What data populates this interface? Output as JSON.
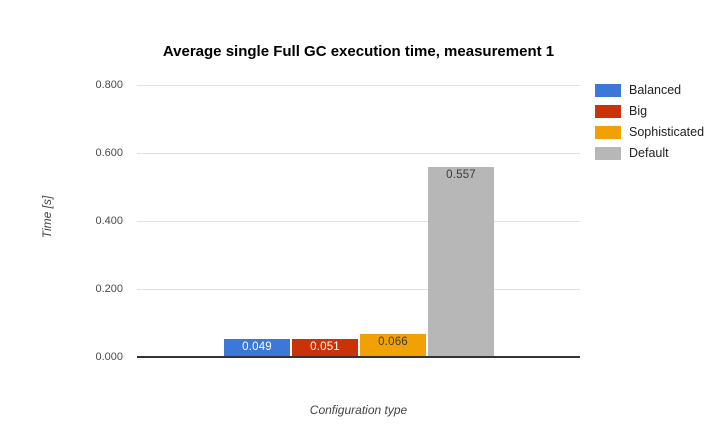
{
  "chart_data": {
    "type": "bar",
    "title": "Average single Full GC execution time, measurement 1",
    "xlabel": "Configuration type",
    "ylabel": "Time [s]",
    "ylim": [
      0,
      0.8
    ],
    "ytick_labels": [
      "0.000",
      "0.200",
      "0.400",
      "0.600",
      "0.800"
    ],
    "ytick_values": [
      0,
      0.2,
      0.4,
      0.6,
      0.8
    ],
    "grid": true,
    "legend_position": "right",
    "categories": [
      "Balanced",
      "Big",
      "Sophisticated",
      "Default"
    ],
    "series": [
      {
        "name": "Balanced",
        "value": 0.049,
        "label": "0.049",
        "color": "#3c78d8",
        "label_color": "#ffffff"
      },
      {
        "name": "Big",
        "value": 0.051,
        "label": "0.051",
        "color": "#cc3208",
        "label_color": "#ffffff"
      },
      {
        "name": "Sophisticated",
        "value": 0.066,
        "label": "0.066",
        "color": "#f2a104",
        "label_color": "#3c3c3c"
      },
      {
        "name": "Default",
        "value": 0.557,
        "label": "0.557",
        "color": "#b7b7b7",
        "label_color": "#3c3c3c"
      }
    ]
  },
  "colors": {
    "background": "#ffffff",
    "gridline": "#e3e3e3",
    "baseline": "#333333",
    "title_text": "#000000",
    "axis_text": "#4a4a4a",
    "legend_text": "#222222"
  }
}
